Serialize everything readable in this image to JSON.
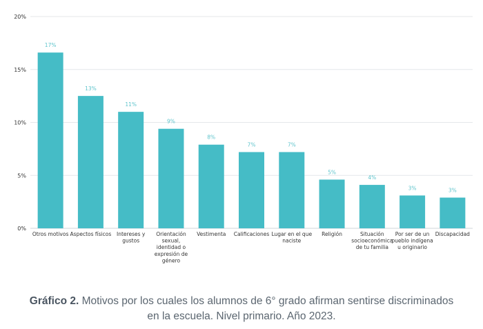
{
  "caption": {
    "prefix": "Gráfico 2.",
    "text": "Motivos por los cuales los alumnos de 6° grado afirman sentirse discriminados en la escuela. Nivel primario. Año 2023."
  },
  "chart_data": {
    "type": "bar",
    "categories": [
      [
        "Otros motivos"
      ],
      [
        "Aspectos físicos"
      ],
      [
        "Intereses y",
        "gustos"
      ],
      [
        "Orientación",
        "sexual,",
        "identidad o",
        "expresión de",
        "género"
      ],
      [
        "Vestimenta"
      ],
      [
        "Calificaciones"
      ],
      [
        "Lugar en el que",
        "naciste"
      ],
      [
        "Religión"
      ],
      [
        "Situación",
        "socioeconómica",
        "de tu familia"
      ],
      [
        "Por ser de un",
        "pueblo indígena",
        "u originario"
      ],
      [
        "Discapacidad"
      ]
    ],
    "values": [
      16.6,
      12.5,
      11.0,
      9.4,
      7.9,
      7.2,
      7.2,
      4.6,
      4.1,
      3.1,
      2.9
    ],
    "data_labels": [
      "17%",
      "13%",
      "11%",
      "9%",
      "8%",
      "7%",
      "7%",
      "5%",
      "4%",
      "3%",
      "3%"
    ],
    "y_ticks": [
      0,
      5,
      10,
      15,
      20
    ],
    "y_tick_labels": [
      "0%",
      "5%",
      "10%",
      "15%",
      "20%"
    ],
    "ylim": [
      0,
      20
    ],
    "bar_color": "#45bcc6",
    "label_color": "#5fc4cc",
    "grid": true
  }
}
